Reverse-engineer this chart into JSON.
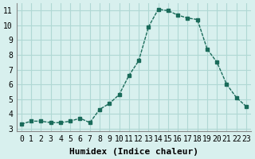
{
  "x": [
    0,
    1,
    2,
    3,
    4,
    5,
    6,
    7,
    8,
    9,
    10,
    11,
    12,
    13,
    14,
    15,
    16,
    17,
    18,
    19,
    20,
    21,
    22,
    23
  ],
  "y": [
    3.3,
    3.5,
    3.5,
    3.4,
    3.4,
    3.5,
    3.7,
    3.4,
    4.3,
    4.7,
    5.3,
    6.6,
    7.6,
    9.9,
    11.1,
    11.0,
    10.7,
    10.5,
    10.4,
    8.4,
    7.5,
    6.0,
    5.1,
    4.5
  ],
  "line_color": "#1a6b5a",
  "marker": "s",
  "marker_size": 2.5,
  "background_color": "#d8f0ee",
  "grid_color": "#b0d8d4",
  "xlabel": "Humidex (Indice chaleur)",
  "xlabel_fontsize": 8,
  "tick_fontsize": 7,
  "xlim": [
    -0.5,
    23.5
  ],
  "ylim": [
    2.8,
    11.5
  ],
  "yticks": [
    3,
    4,
    5,
    6,
    7,
    8,
    9,
    10,
    11
  ],
  "xticks": [
    0,
    1,
    2,
    3,
    4,
    5,
    6,
    7,
    8,
    9,
    10,
    11,
    12,
    13,
    14,
    15,
    16,
    17,
    18,
    19,
    20,
    21,
    22,
    23
  ]
}
